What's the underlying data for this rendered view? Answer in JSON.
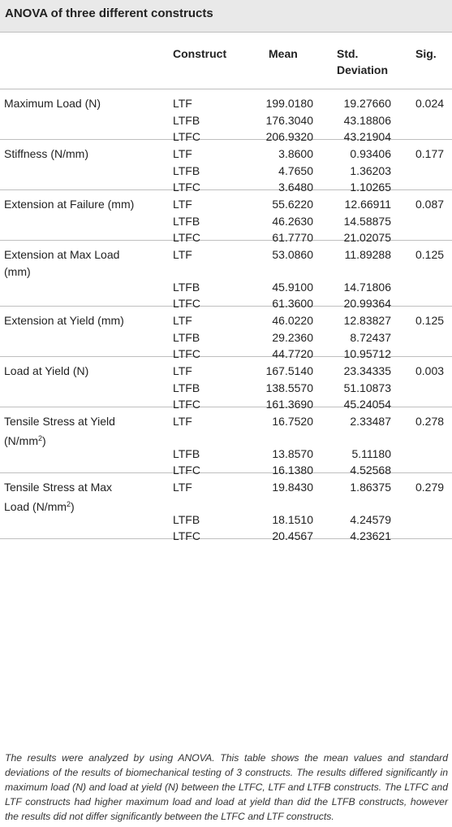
{
  "title": "ANOVA of three different constructs",
  "headers": {
    "construct": "Construct",
    "mean": "Mean",
    "std_line1": "Std.",
    "std_line2": "Deviation",
    "sig": "Sig."
  },
  "groups": [
    {
      "label_line1": "Maximum Load (N)",
      "label_line2": "",
      "label_sup": "",
      "label_after": "",
      "sig": "0.024",
      "rows": [
        {
          "construct": "LTF",
          "mean": "199.0180",
          "std": "19.27660"
        },
        {
          "construct": "LTFB",
          "mean": "176.3040",
          "std": "43.18806"
        },
        {
          "construct": "LTFC",
          "mean": "206.9320",
          "std": "43.21904"
        }
      ]
    },
    {
      "label_line1": "Stiffness (N/mm)",
      "label_line2": "",
      "label_sup": "",
      "label_after": "",
      "sig": "0.177",
      "rows": [
        {
          "construct": "LTF",
          "mean": "3.8600",
          "std": "0.93406"
        },
        {
          "construct": "LTFB",
          "mean": "4.7650",
          "std": "1.36203"
        },
        {
          "construct": "LTFC",
          "mean": "3.6480",
          "std": "1.10265"
        }
      ]
    },
    {
      "label_line1": "Extension at Failure (mm)",
      "label_line2": "",
      "label_sup": "",
      "label_after": "",
      "sig": "0.087",
      "rows": [
        {
          "construct": "LTF",
          "mean": "55.6220",
          "std": "12.66911"
        },
        {
          "construct": "LTFB",
          "mean": "46.2630",
          "std": "14.58875"
        },
        {
          "construct": "LTFC",
          "mean": "61.7770",
          "std": "21.02075"
        }
      ]
    },
    {
      "label_line1": "Extension at Max Load",
      "label_line2": "(mm)",
      "label_sup": "",
      "label_after": "",
      "sig": "0.125",
      "rows": [
        {
          "construct": "LTF",
          "mean": "53.0860",
          "std": "11.89288"
        },
        {
          "construct": "LTFB",
          "mean": "45.9100",
          "std": "14.71806"
        },
        {
          "construct": "LTFC",
          "mean": "61.3600",
          "std": "20.99364"
        }
      ]
    },
    {
      "label_line1": "Extension at Yield (mm)",
      "label_line2": "",
      "label_sup": "",
      "label_after": "",
      "sig": "0.125",
      "rows": [
        {
          "construct": "LTF",
          "mean": "46.0220",
          "std": "12.83827"
        },
        {
          "construct": "LTFB",
          "mean": "29.2360",
          "std": "8.72437"
        },
        {
          "construct": "LTFC",
          "mean": "44.7720",
          "std": "10.95712"
        }
      ]
    },
    {
      "label_line1": "Load at Yield (N)",
      "label_line2": "",
      "label_sup": "",
      "label_after": "",
      "sig": "0.003",
      "rows": [
        {
          "construct": "LTF",
          "mean": "167.5140",
          "std": "23.34335"
        },
        {
          "construct": "LTFB",
          "mean": "138.5570",
          "std": "51.10873"
        },
        {
          "construct": "LTFC",
          "mean": "161.3690",
          "std": "45.24054"
        }
      ]
    },
    {
      "label_line1": "Tensile Stress at Yield",
      "label_line2": "(N/mm",
      "label_sup": "2",
      "label_after": ")",
      "sig": "0.278",
      "rows": [
        {
          "construct": "LTF",
          "mean": "16.7520",
          "std": "2.33487"
        },
        {
          "construct": "LTFB",
          "mean": "13.8570",
          "std": "5.11180"
        },
        {
          "construct": "LTFC",
          "mean": "16.1380",
          "std": "4.52568"
        }
      ]
    },
    {
      "label_line1": "Tensile Stress at Max",
      "label_line2": "Load (N/mm",
      "label_sup": "2",
      "label_after": ")",
      "sig": "0.279",
      "rows": [
        {
          "construct": "LTF",
          "mean": "19.8430",
          "std": "1.86375"
        },
        {
          "construct": "LTFB",
          "mean": "18.1510",
          "std": "4.24579"
        },
        {
          "construct": "LTFC",
          "mean": "20.4567",
          "std": "4.23621"
        }
      ]
    }
  ],
  "footnote": "The results were analyzed by using ANOVA. This table shows the mean values and standard deviations of the results of biomechanical testing of 3 constructs. The results differed significantly in maximum load (N) and load at yield (N) between the LTFC, LTF and LTFB constructs. The LTFC and LTF constructs had higher maximum load and load at yield than did the LTFB constructs, however the results did not differ significantly between the LTFC and LTF constructs."
}
